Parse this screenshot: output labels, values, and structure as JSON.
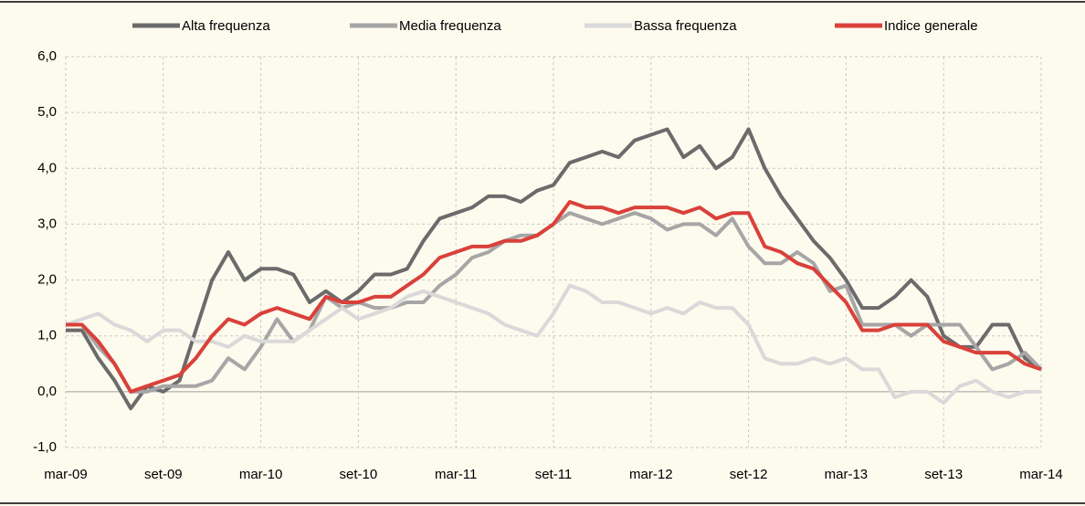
{
  "chart_data": {
    "type": "line",
    "categories": [
      "mar-09",
      null,
      null,
      null,
      null,
      null,
      "set-09",
      null,
      null,
      null,
      null,
      null,
      "mar-10",
      null,
      null,
      null,
      null,
      null,
      "set-10",
      null,
      null,
      null,
      null,
      null,
      "mar-11",
      null,
      null,
      null,
      null,
      null,
      "set-11",
      null,
      null,
      null,
      null,
      null,
      "mar-12",
      null,
      null,
      null,
      null,
      null,
      "set-12",
      null,
      null,
      null,
      null,
      null,
      "mar-13",
      null,
      null,
      null,
      null,
      null,
      "set-13",
      null,
      null,
      null,
      null,
      null,
      "mar-14"
    ],
    "series": [
      {
        "name": "Alta frequenza",
        "color": "#6b6b6b",
        "values": [
          1.1,
          1.1,
          0.6,
          0.2,
          -0.3,
          0.1,
          0.0,
          0.2,
          1.1,
          2.0,
          2.5,
          2.0,
          2.2,
          2.2,
          2.1,
          1.6,
          1.8,
          1.6,
          1.8,
          2.1,
          2.1,
          2.2,
          2.7,
          3.1,
          3.2,
          3.3,
          3.5,
          3.5,
          3.4,
          3.6,
          3.7,
          4.1,
          4.2,
          4.3,
          4.2,
          4.5,
          4.6,
          4.7,
          4.2,
          4.4,
          4.0,
          4.2,
          4.7,
          4.0,
          3.5,
          3.1,
          2.7,
          2.4,
          2.0,
          1.5,
          1.5,
          1.7,
          2.0,
          1.7,
          1.0,
          0.8,
          0.8,
          1.2,
          1.2,
          0.6,
          0.4
        ]
      },
      {
        "name": "Media frequenza",
        "color": "#a6a6a6",
        "values": [
          1.2,
          1.2,
          0.8,
          0.5,
          0.0,
          0.0,
          0.1,
          0.1,
          0.1,
          0.2,
          0.6,
          0.4,
          0.8,
          1.3,
          0.9,
          1.1,
          1.7,
          1.5,
          1.6,
          1.5,
          1.5,
          1.6,
          1.6,
          1.9,
          2.1,
          2.4,
          2.5,
          2.7,
          2.8,
          2.8,
          3.0,
          3.2,
          3.1,
          3.0,
          3.1,
          3.2,
          3.1,
          2.9,
          3.0,
          3.0,
          2.8,
          3.1,
          2.6,
          2.3,
          2.3,
          2.5,
          2.3,
          1.8,
          1.9,
          1.2,
          1.2,
          1.2,
          1.0,
          1.2,
          1.2,
          1.2,
          0.8,
          0.4,
          0.5,
          0.7,
          0.4
        ]
      },
      {
        "name": "Bassa frequenza",
        "color": "#d9d9d9",
        "values": [
          1.2,
          1.3,
          1.4,
          1.2,
          1.1,
          0.9,
          1.1,
          1.1,
          0.9,
          0.9,
          0.8,
          1.0,
          0.9,
          0.9,
          0.9,
          1.1,
          1.3,
          1.5,
          1.3,
          1.4,
          1.5,
          1.7,
          1.8,
          1.7,
          1.6,
          1.5,
          1.4,
          1.2,
          1.1,
          1.0,
          1.4,
          1.9,
          1.8,
          1.6,
          1.6,
          1.5,
          1.4,
          1.5,
          1.4,
          1.6,
          1.5,
          1.5,
          1.2,
          0.6,
          0.5,
          0.5,
          0.6,
          0.5,
          0.6,
          0.4,
          0.4,
          -0.1,
          0.0,
          0.0,
          -0.2,
          0.1,
          0.2,
          0.0,
          -0.1,
          0.0,
          0.0
        ]
      },
      {
        "name": "Indice generale",
        "color": "#d9413a",
        "values": [
          1.2,
          1.2,
          0.9,
          0.5,
          0.0,
          0.1,
          0.2,
          0.3,
          0.6,
          1.0,
          1.3,
          1.2,
          1.4,
          1.5,
          1.4,
          1.3,
          1.7,
          1.6,
          1.6,
          1.7,
          1.7,
          1.9,
          2.1,
          2.4,
          2.5,
          2.6,
          2.6,
          2.7,
          2.7,
          2.8,
          3.0,
          3.4,
          3.3,
          3.3,
          3.2,
          3.3,
          3.3,
          3.3,
          3.2,
          3.3,
          3.1,
          3.2,
          3.2,
          2.6,
          2.5,
          2.3,
          2.2,
          1.9,
          1.6,
          1.1,
          1.1,
          1.2,
          1.2,
          1.2,
          0.9,
          0.8,
          0.7,
          0.7,
          0.7,
          0.5,
          0.4
        ]
      }
    ],
    "ylim": [
      -1,
      6
    ],
    "yticks": [
      {
        "value": -1,
        "label": "-1,0"
      },
      {
        "value": 0,
        "label": "0,0"
      },
      {
        "value": 1,
        "label": "1,0"
      },
      {
        "value": 2,
        "label": "2,0"
      },
      {
        "value": 3,
        "label": "3,0"
      },
      {
        "value": 4,
        "label": "4,0"
      },
      {
        "value": 5,
        "label": "5,0"
      },
      {
        "value": 6,
        "label": "6,0"
      }
    ],
    "grid": true,
    "legend": "top"
  }
}
